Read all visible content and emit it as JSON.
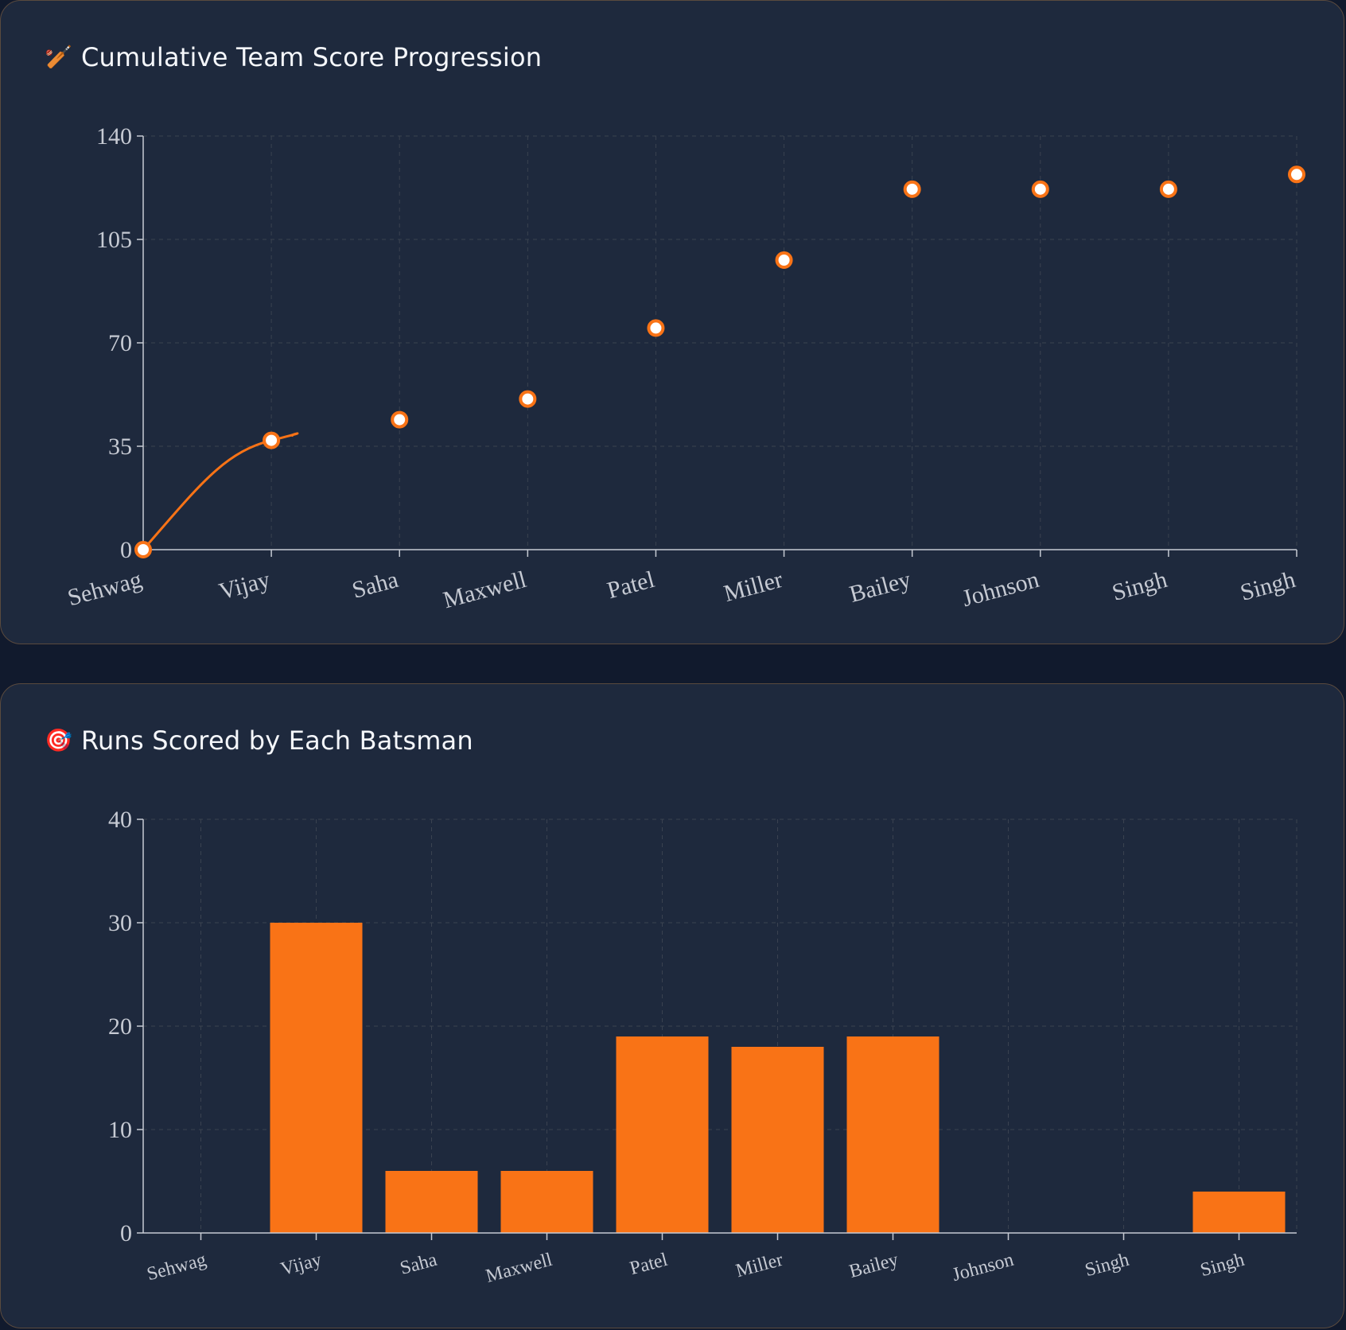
{
  "panels": {
    "cumulative": {
      "icon": "🏏",
      "icon_name": "cricket-bat-icon",
      "title": "Cumulative Team Score Progression"
    },
    "runs": {
      "icon": "🎯",
      "icon_name": "target-icon",
      "title": "Runs Scored by Each Batsman"
    }
  },
  "colors": {
    "accent": "#f97316",
    "background": "#111a2d",
    "panel": "#1e293d",
    "axis": "#c6cad3",
    "grid": "#3a4250"
  },
  "chart_data": [
    {
      "type": "line",
      "title": "Cumulative Team Score Progression",
      "xlabel": "",
      "ylabel": "",
      "categories": [
        "Sehwag",
        "Vijay",
        "Saha",
        "Maxwell",
        "Patel",
        "Miller",
        "Bailey",
        "Johnson",
        "Singh",
        "Singh"
      ],
      "values": [
        0,
        37,
        44,
        51,
        75,
        98,
        122,
        122,
        122,
        127
      ],
      "y_ticks": [
        0,
        35,
        70,
        105,
        140
      ],
      "ylim": [
        0,
        140
      ],
      "grid": true,
      "legend": "none"
    },
    {
      "type": "bar",
      "title": "Runs Scored by Each Batsman",
      "xlabel": "",
      "ylabel": "",
      "categories": [
        "Sehwag",
        "Vijay",
        "Saha",
        "Maxwell",
        "Patel",
        "Miller",
        "Bailey",
        "Johnson",
        "Singh",
        "Singh"
      ],
      "values": [
        0,
        30,
        6,
        6,
        19,
        18,
        19,
        0,
        0,
        4
      ],
      "y_ticks": [
        0,
        10,
        20,
        30,
        40
      ],
      "ylim": [
        0,
        40
      ],
      "grid": true,
      "legend": "none"
    }
  ]
}
